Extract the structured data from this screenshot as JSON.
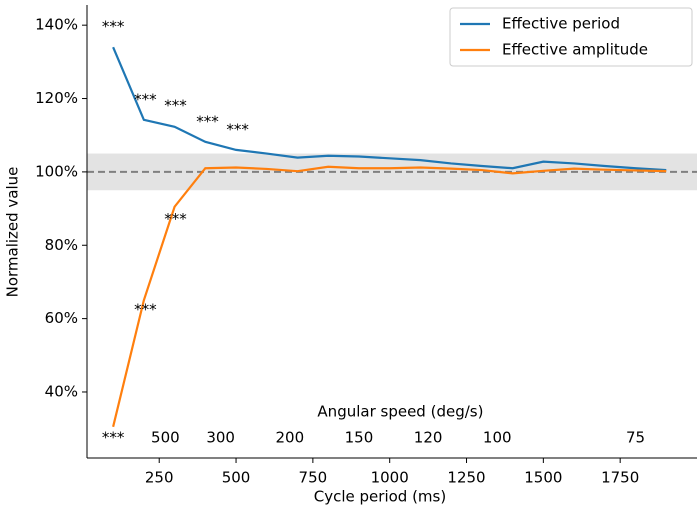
{
  "chart_data": {
    "type": "line",
    "xlabel": "Cycle period (ms)",
    "ylabel": "Normalized value",
    "x2label": "Angular speed (deg/s)",
    "x": [
      100,
      200,
      300,
      400,
      500,
      600,
      700,
      800,
      900,
      1000,
      1100,
      1200,
      1300,
      1400,
      1500,
      1600,
      1700,
      1800,
      1900
    ],
    "series": [
      {
        "name": "Effective period",
        "color": "#1f77b4",
        "values": [
          134,
          114.2,
          112.3,
          108.2,
          106,
          105,
          103.9,
          104.4,
          104.2,
          103.7,
          103.2,
          102.3,
          101.6,
          101,
          102.8,
          102.3,
          101.6,
          101,
          100.5
        ]
      },
      {
        "name": "Effective amplitude",
        "color": "#ff7f0e",
        "values": [
          30.5,
          65,
          90.5,
          101,
          101.2,
          100.8,
          100.2,
          101.4,
          101,
          101,
          101.2,
          100.9,
          100.5,
          99.6,
          100.3,
          100.9,
          100.6,
          100.4,
          100.2
        ]
      }
    ],
    "xlim": [
      15,
      2000
    ],
    "ylim": [
      22,
      145.5
    ],
    "xticks": [
      250,
      500,
      750,
      1000,
      1250,
      1500,
      1750
    ],
    "yticks": [
      {
        "value": 40,
        "label": "40%"
      },
      {
        "value": 60,
        "label": "60%"
      },
      {
        "value": 80,
        "label": "80%"
      },
      {
        "value": 100,
        "label": "100%"
      },
      {
        "value": 120,
        "label": "120%"
      },
      {
        "value": 140,
        "label": "140%"
      }
    ],
    "x2ticks": [
      {
        "value": 270,
        "label": "500"
      },
      {
        "value": 450,
        "label": "300"
      },
      {
        "value": 675,
        "label": "200"
      },
      {
        "value": 900,
        "label": "150"
      },
      {
        "value": 1125,
        "label": "120"
      },
      {
        "value": 1350,
        "label": "100"
      },
      {
        "value": 1800,
        "label": "75"
      }
    ],
    "reference_line": 100,
    "reference_band": [
      95,
      105
    ],
    "annotations": [
      {
        "text": "***",
        "x": 100,
        "y": 139.5
      },
      {
        "text": "***",
        "x": 205,
        "y": 119.6
      },
      {
        "text": "***",
        "x": 303,
        "y": 118
      },
      {
        "text": "***",
        "x": 407,
        "y": 113.6
      },
      {
        "text": "***",
        "x": 505,
        "y": 111.4
      },
      {
        "text": "***",
        "x": 303,
        "y": 87
      },
      {
        "text": "***",
        "x": 205,
        "y": 62.4
      },
      {
        "text": "***",
        "x": 100,
        "y": 27.5
      }
    ],
    "legend": "upper right"
  }
}
